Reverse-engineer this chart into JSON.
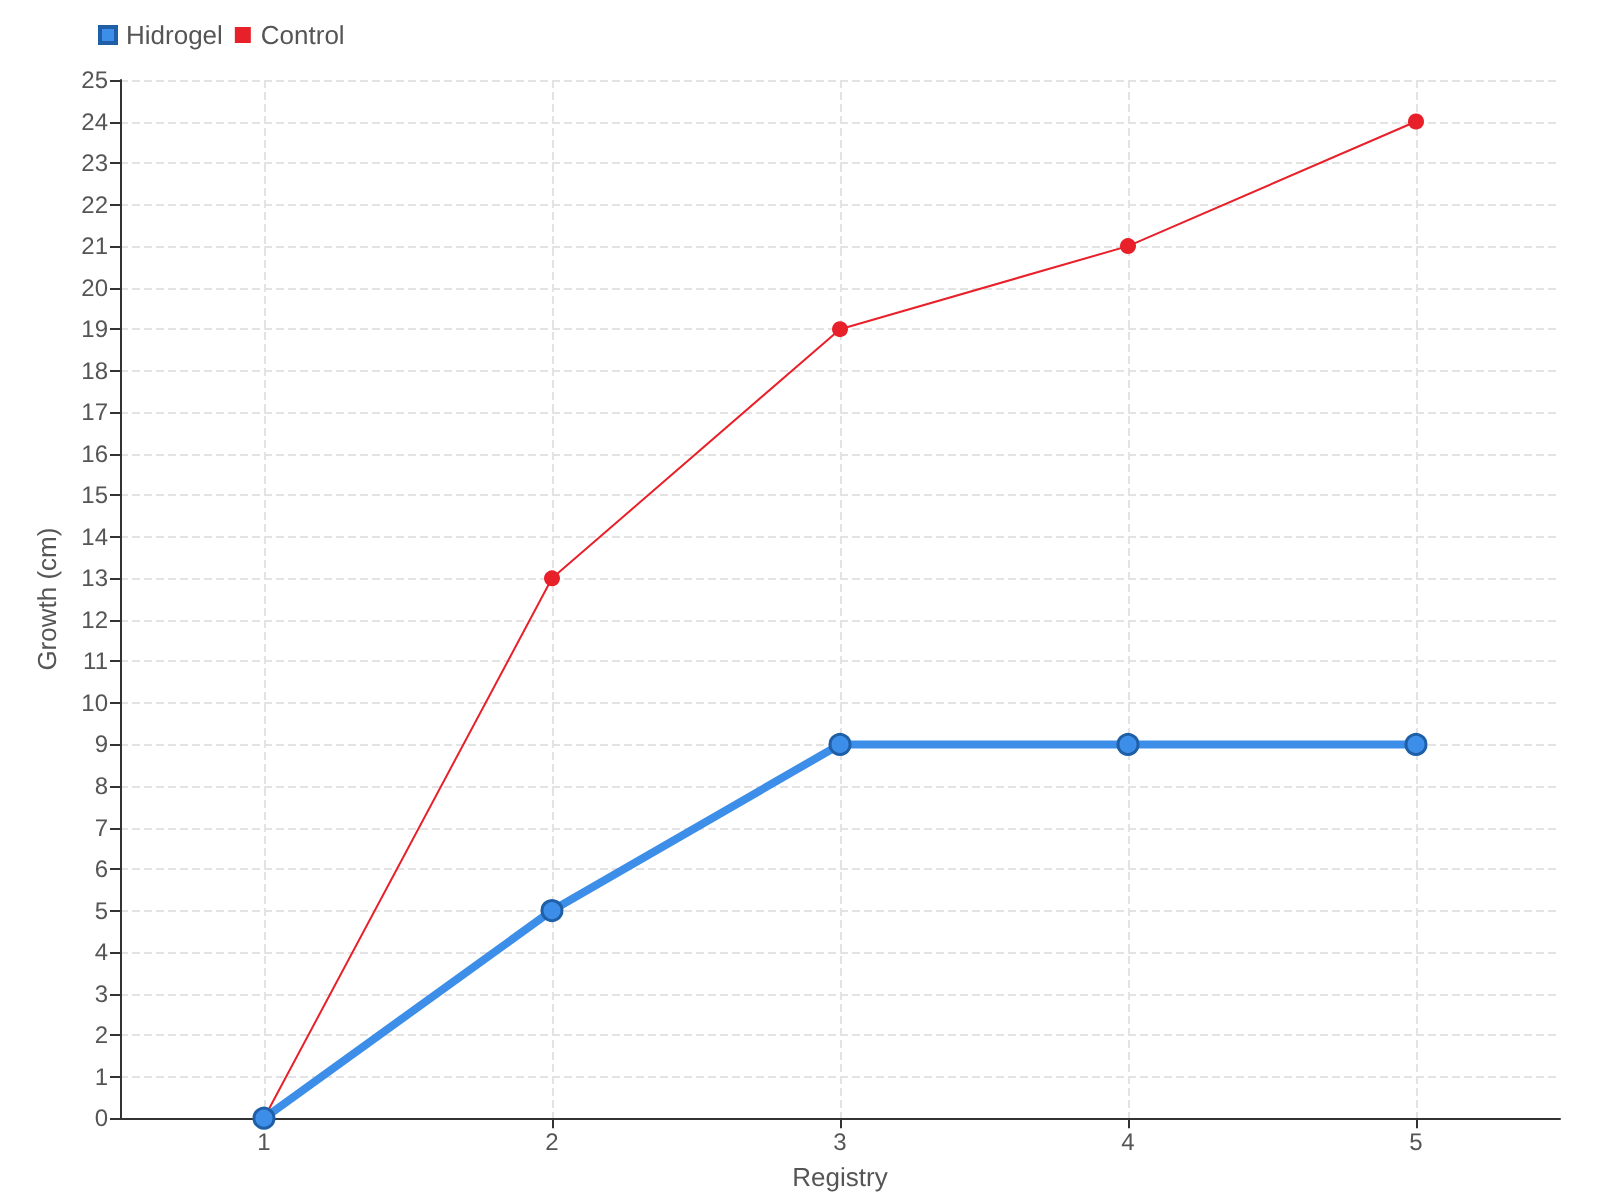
{
  "chart_data": {
    "type": "line",
    "xlabel": "Registry",
    "ylabel": "Growth (cm)",
    "x": [
      1,
      2,
      3,
      4,
      5
    ],
    "xlim": [
      0.5,
      5.5
    ],
    "xticks": [
      1,
      2,
      3,
      4,
      5
    ],
    "ylim": [
      0,
      25
    ],
    "yticks": [
      0,
      1,
      2,
      3,
      4,
      5,
      6,
      7,
      8,
      9,
      10,
      11,
      12,
      13,
      14,
      15,
      16,
      17,
      18,
      19,
      20,
      21,
      22,
      23,
      24,
      25
    ],
    "series": [
      {
        "name": "Hidrogel",
        "color": "#3d8ee8",
        "values": [
          0,
          5,
          9,
          9,
          9
        ]
      },
      {
        "name": "Control",
        "color": "#e8202a",
        "values": [
          0,
          13,
          19,
          21,
          24
        ]
      }
    ],
    "grid": true,
    "legend": "top left",
    "marker": "circle",
    "line_style": "solid"
  }
}
